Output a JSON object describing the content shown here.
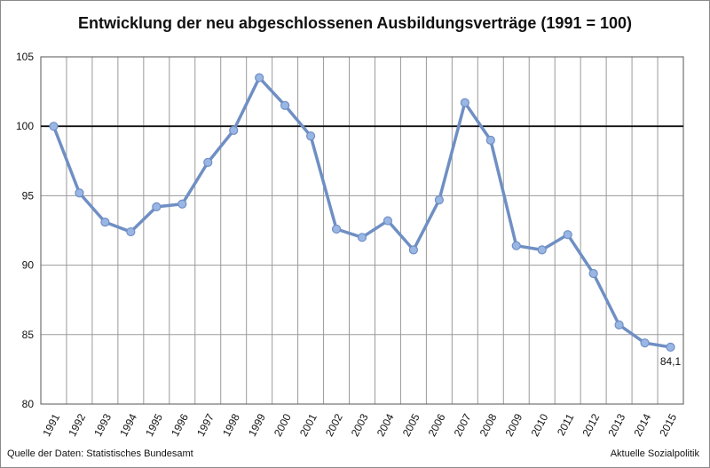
{
  "chart_data": {
    "type": "line",
    "title": "Entwicklung der neu abgeschlossenen Ausbildungsverträge (1991 = 100)",
    "xlabel": "",
    "ylabel": "",
    "ylim": [
      80,
      105
    ],
    "yticks": [
      "80",
      "85",
      "90",
      "95",
      "100",
      "105"
    ],
    "x": [
      "1991",
      "1992",
      "1993",
      "1994",
      "1995",
      "1996",
      "1997",
      "1998",
      "1999",
      "2000",
      "2001",
      "2002",
      "2003",
      "2004",
      "2005",
      "2006",
      "2007",
      "2008",
      "2009",
      "2010",
      "2011",
      "2012",
      "2013",
      "2014",
      "2015"
    ],
    "values": [
      100.0,
      95.2,
      93.1,
      92.4,
      94.2,
      94.4,
      97.4,
      99.7,
      103.5,
      101.5,
      99.3,
      92.6,
      92.0,
      93.2,
      91.1,
      94.7,
      101.7,
      99.0,
      91.4,
      91.1,
      92.2,
      89.4,
      85.7,
      84.4,
      84.1
    ],
    "reference_line": 100,
    "data_labels": [
      {
        "index": 24,
        "text": "84,1"
      }
    ],
    "grid": true,
    "colors": {
      "line": "#6f8fc4",
      "marker": "#9ab6e4",
      "reference": "#111111",
      "grid": "#9a9a9a"
    }
  },
  "footer": {
    "source": "Quelle der Daten: Statistisches Bundesamt",
    "credit": "Aktuelle Sozialpolitik"
  }
}
